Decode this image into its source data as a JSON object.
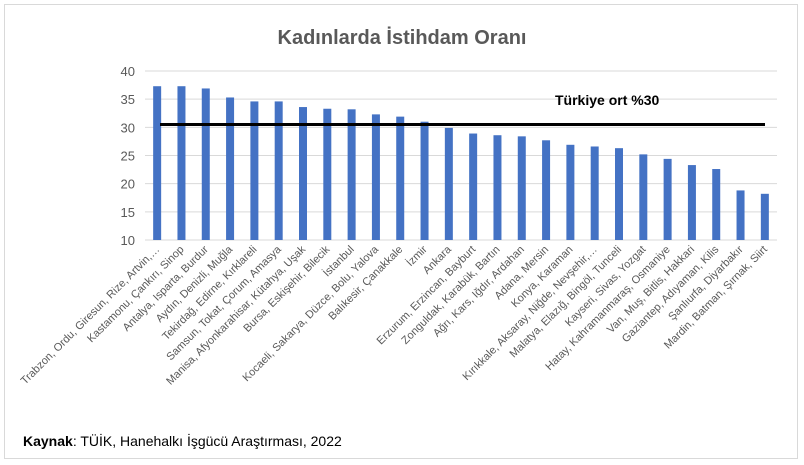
{
  "chart_data": {
    "type": "bar",
    "title": "Kadınlarda İstihdam Oranı",
    "xlabel": "",
    "ylabel": "",
    "ylim": [
      10,
      40
    ],
    "yticks": [
      10,
      15,
      20,
      25,
      30,
      35,
      40
    ],
    "grid": true,
    "legend": "none",
    "bar_color": "#4472c4",
    "categories": [
      "Trabzon, Ordu, Giresun, Rize, Artvin,…",
      "Kastamonu, Çankırı, Sinop",
      "Antalya, Isparta, Burdur",
      "Aydın, Denizli, Muğla",
      "Tekirdağ, Edirne, Kırklareli",
      "Samsun, Tokat, Çorum, Amasya",
      "Manisa, Afyonkarahisar, Kütahya, Uşak",
      "Bursa, Eskişehir, Bilecik",
      "İstanbul",
      "Kocaeli, Sakarya, Düzce, Bolu, Yalova",
      "Balıkesir, Çanakkale",
      "İzmir",
      "Ankara",
      "Erzurum, Erzincan, Bayburt",
      "Zonguldak, Karabük, Bartın",
      "Ağrı, Kars, Iğdır, Ardahan",
      "Adana, Mersin",
      "Konya, Karaman",
      "Kırıkkale, Aksaray, Niğde, Nevşehir,…",
      "Malatya, Elazığ, Bingöl, Tunceli",
      "Kayseri, Sivas, Yozgat",
      "Hatay, Kahramanmaraş, Osmaniye",
      "Van, Muş, Bitlis, Hakkari",
      "Gaziantep, Adıyaman, Kilis",
      "Şanlıurfa, Diyarbakır",
      "Mardin, Batman, Şırnak, Siirt"
    ],
    "values": [
      37.3,
      37.3,
      36.9,
      35.3,
      34.6,
      34.6,
      33.6,
      33.3,
      33.2,
      32.3,
      31.9,
      31.0,
      29.9,
      28.9,
      28.6,
      28.4,
      27.7,
      26.9,
      26.6,
      26.3,
      25.2,
      24.4,
      23.3,
      22.6,
      18.8,
      18.2
    ],
    "reference_line": {
      "value": 30.5,
      "label": "Türkiye ort %30",
      "color": "#000000"
    }
  },
  "source": {
    "label": "Kaynak",
    "text": ": TÜİK, Hanehalkı İşgücü Araştırması, 2022"
  }
}
